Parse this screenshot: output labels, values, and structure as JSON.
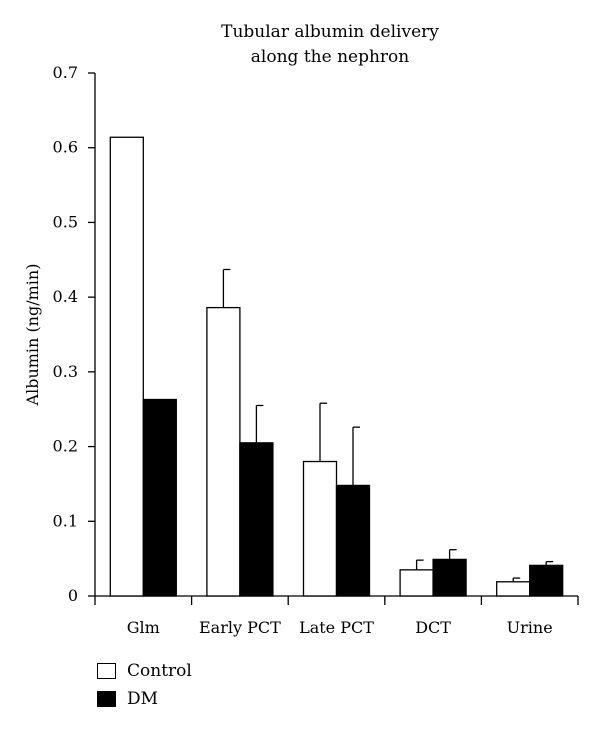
{
  "chart_data": {
    "type": "bar",
    "title_lines": [
      "Tubular albumin delivery",
      "along the nephron"
    ],
    "ylabel": "Albumin (ng/min)",
    "xlabel": "",
    "ylim": [
      0,
      0.7
    ],
    "yticks": [
      "0",
      "0.1",
      "0.2",
      "0.3",
      "0.4",
      "0.5",
      "0.6",
      "0.7"
    ],
    "categories": [
      "Glm",
      "Early PCT",
      "Late PCT",
      "DCT",
      "Urine"
    ],
    "series": [
      {
        "name": "Control",
        "color": "#ffffff",
        "values": [
          0.614,
          0.386,
          0.18,
          0.035,
          0.019
        ],
        "errors": [
          0,
          0.051,
          0.078,
          0.013,
          0.005
        ]
      },
      {
        "name": "DM",
        "color": "#000000",
        "values": [
          0.263,
          0.205,
          0.148,
          0.049,
          0.041
        ],
        "errors": [
          0,
          0.05,
          0.078,
          0.013,
          0.005
        ]
      }
    ],
    "legend_position": "bottom-left"
  }
}
